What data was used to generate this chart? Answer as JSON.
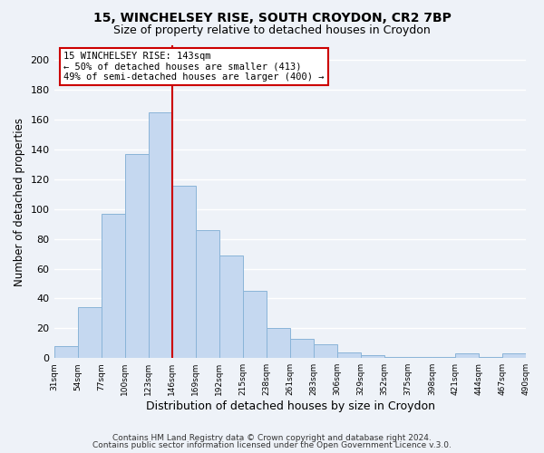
{
  "title_line1": "15, WINCHELSEY RISE, SOUTH CROYDON, CR2 7BP",
  "title_line2": "Size of property relative to detached houses in Croydon",
  "xlabel": "Distribution of detached houses by size in Croydon",
  "ylabel": "Number of detached properties",
  "bar_color": "#c5d8f0",
  "bar_edge_color": "#8ab4d8",
  "vline_color": "#cc0000",
  "categories": [
    "31sqm",
    "54sqm",
    "77sqm",
    "100sqm",
    "123sqm",
    "146sqm",
    "169sqm",
    "192sqm",
    "215sqm",
    "238sqm",
    "261sqm",
    "283sqm",
    "306sqm",
    "329sqm",
    "352sqm",
    "375sqm",
    "398sqm",
    "421sqm",
    "444sqm",
    "467sqm",
    "490sqm"
  ],
  "values": [
    8,
    34,
    97,
    137,
    165,
    116,
    86,
    69,
    45,
    20,
    13,
    9,
    4,
    2,
    1,
    1,
    1,
    3,
    1,
    3
  ],
  "ylim": [
    0,
    210
  ],
  "yticks": [
    0,
    20,
    40,
    60,
    80,
    100,
    120,
    140,
    160,
    180,
    200
  ],
  "annotation_title": "15 WINCHELSEY RISE: 143sqm",
  "annotation_line1": "← 50% of detached houses are smaller (413)",
  "annotation_line2": "49% of semi-detached houses are larger (400) →",
  "annotation_box_color": "#ffffff",
  "annotation_box_edge": "#cc0000",
  "footer_line1": "Contains HM Land Registry data © Crown copyright and database right 2024.",
  "footer_line2": "Contains public sector information licensed under the Open Government Licence v.3.0.",
  "background_color": "#eef2f8",
  "grid_color": "#ffffff"
}
